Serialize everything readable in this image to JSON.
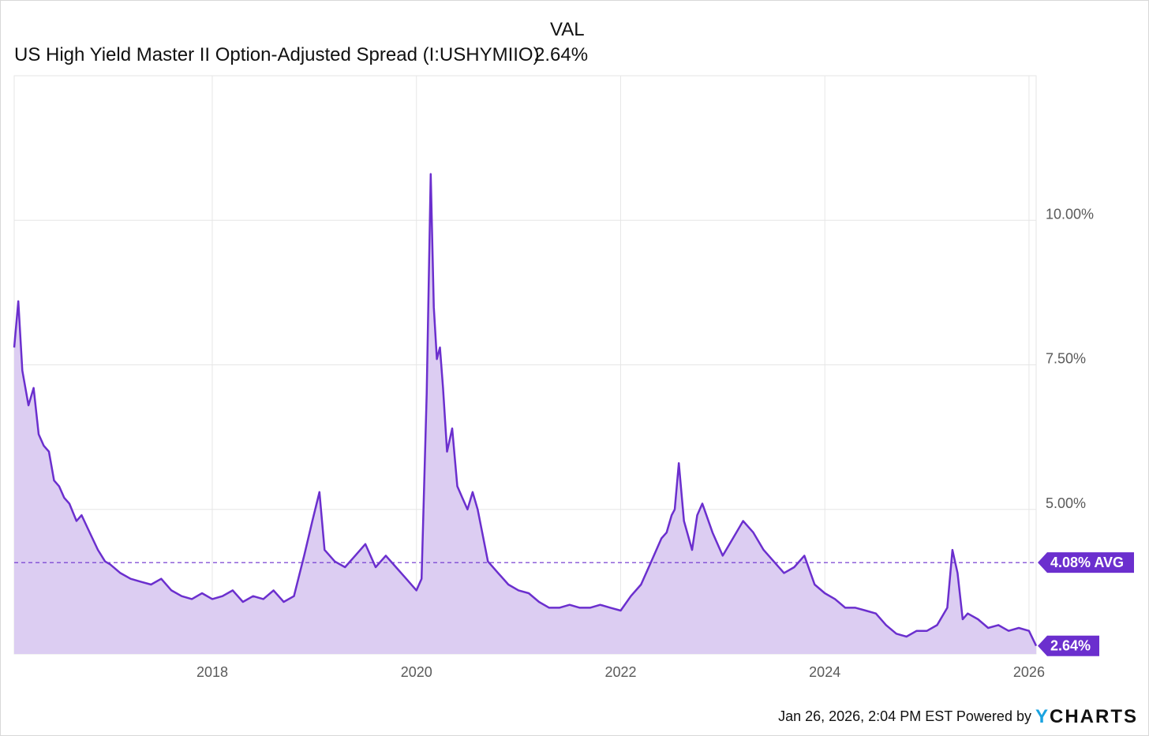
{
  "legend": {
    "header": "VAL",
    "series_name": "US High Yield Master II Option-Adjusted Spread (I:USHYMIIO)",
    "series_value": "2.64%"
  },
  "footer": {
    "timestamp": "Jan 26, 2026, 2:04 PM EST",
    "powered_by": "Powered by",
    "brand_first": "Y",
    "brand_rest": "CHARTS"
  },
  "colors": {
    "line": "#6b2fce",
    "fill": "#dccdf2",
    "badge": "#6b2fce",
    "grid": "#e6e6e6"
  },
  "chart_data": {
    "type": "area",
    "title": "US High Yield Master II Option-Adjusted Spread (I:USHYMIIO)",
    "xlabel": "",
    "ylabel": "",
    "x_ticks": [
      2018,
      2020,
      2022,
      2024,
      2026
    ],
    "x_tick_labels": [
      "2018",
      "2020",
      "2022",
      "2024",
      "2026"
    ],
    "y_ticks": [
      5,
      7.5,
      10
    ],
    "y_tick_labels": [
      "5.00%",
      "7.50%",
      "10.00%"
    ],
    "xlim": [
      2016.06,
      2026.07
    ],
    "ylim": [
      2.5,
      12.5
    ],
    "grid": true,
    "average": {
      "value": 4.08,
      "label": "4.08% AVG"
    },
    "last": {
      "value": 2.64,
      "label": "2.64%"
    },
    "series": [
      {
        "name": "US High Yield Master II Option-Adjusted Spread",
        "x": [
          2016.06,
          2016.1,
          2016.14,
          2016.2,
          2016.25,
          2016.3,
          2016.35,
          2016.4,
          2016.45,
          2016.5,
          2016.55,
          2016.6,
          2016.67,
          2016.72,
          2016.8,
          2016.88,
          2016.95,
          2017.0,
          2017.1,
          2017.2,
          2017.3,
          2017.4,
          2017.5,
          2017.6,
          2017.7,
          2017.8,
          2017.9,
          2018.0,
          2018.1,
          2018.2,
          2018.3,
          2018.4,
          2018.5,
          2018.6,
          2018.7,
          2018.8,
          2018.9,
          2018.98,
          2019.05,
          2019.1,
          2019.2,
          2019.3,
          2019.4,
          2019.5,
          2019.6,
          2019.7,
          2019.8,
          2019.9,
          2020.0,
          2020.05,
          2020.1,
          2020.14,
          2020.17,
          2020.2,
          2020.23,
          2020.26,
          2020.3,
          2020.35,
          2020.4,
          2020.45,
          2020.5,
          2020.55,
          2020.6,
          2020.7,
          2020.8,
          2020.9,
          2021.0,
          2021.1,
          2021.2,
          2021.3,
          2021.4,
          2021.5,
          2021.6,
          2021.7,
          2021.8,
          2021.9,
          2022.0,
          2022.1,
          2022.2,
          2022.3,
          2022.4,
          2022.45,
          2022.5,
          2022.53,
          2022.57,
          2022.62,
          2022.7,
          2022.75,
          2022.8,
          2022.9,
          2023.0,
          2023.1,
          2023.2,
          2023.3,
          2023.4,
          2023.5,
          2023.6,
          2023.7,
          2023.8,
          2023.9,
          2024.0,
          2024.1,
          2024.2,
          2024.3,
          2024.4,
          2024.5,
          2024.6,
          2024.7,
          2024.8,
          2024.9,
          2025.0,
          2025.1,
          2025.2,
          2025.25,
          2025.3,
          2025.35,
          2025.4,
          2025.5,
          2025.6,
          2025.7,
          2025.8,
          2025.9,
          2026.0,
          2026.07
        ],
        "values": [
          7.8,
          8.6,
          7.4,
          6.8,
          7.1,
          6.3,
          6.1,
          6.0,
          5.5,
          5.4,
          5.2,
          5.1,
          4.8,
          4.9,
          4.6,
          4.3,
          4.1,
          4.05,
          3.9,
          3.8,
          3.75,
          3.7,
          3.8,
          3.6,
          3.5,
          3.45,
          3.55,
          3.45,
          3.5,
          3.6,
          3.4,
          3.5,
          3.45,
          3.6,
          3.4,
          3.5,
          4.2,
          4.8,
          5.3,
          4.3,
          4.1,
          4.0,
          4.2,
          4.4,
          4.0,
          4.2,
          4.0,
          3.8,
          3.6,
          3.8,
          7.0,
          10.8,
          8.5,
          7.6,
          7.8,
          7.1,
          6.0,
          6.4,
          5.4,
          5.2,
          5.0,
          5.3,
          5.0,
          4.1,
          3.9,
          3.7,
          3.6,
          3.55,
          3.4,
          3.3,
          3.3,
          3.35,
          3.3,
          3.3,
          3.35,
          3.3,
          3.25,
          3.5,
          3.7,
          4.1,
          4.5,
          4.6,
          4.9,
          5.0,
          5.8,
          4.8,
          4.3,
          4.9,
          5.1,
          4.6,
          4.2,
          4.5,
          4.8,
          4.6,
          4.3,
          4.1,
          3.9,
          4.0,
          4.2,
          3.7,
          3.55,
          3.45,
          3.3,
          3.3,
          3.25,
          3.2,
          3.0,
          2.85,
          2.8,
          2.9,
          2.9,
          3.0,
          3.3,
          4.3,
          3.9,
          3.1,
          3.2,
          3.1,
          2.95,
          3.0,
          2.9,
          2.95,
          2.9,
          2.64
        ]
      }
    ]
  }
}
